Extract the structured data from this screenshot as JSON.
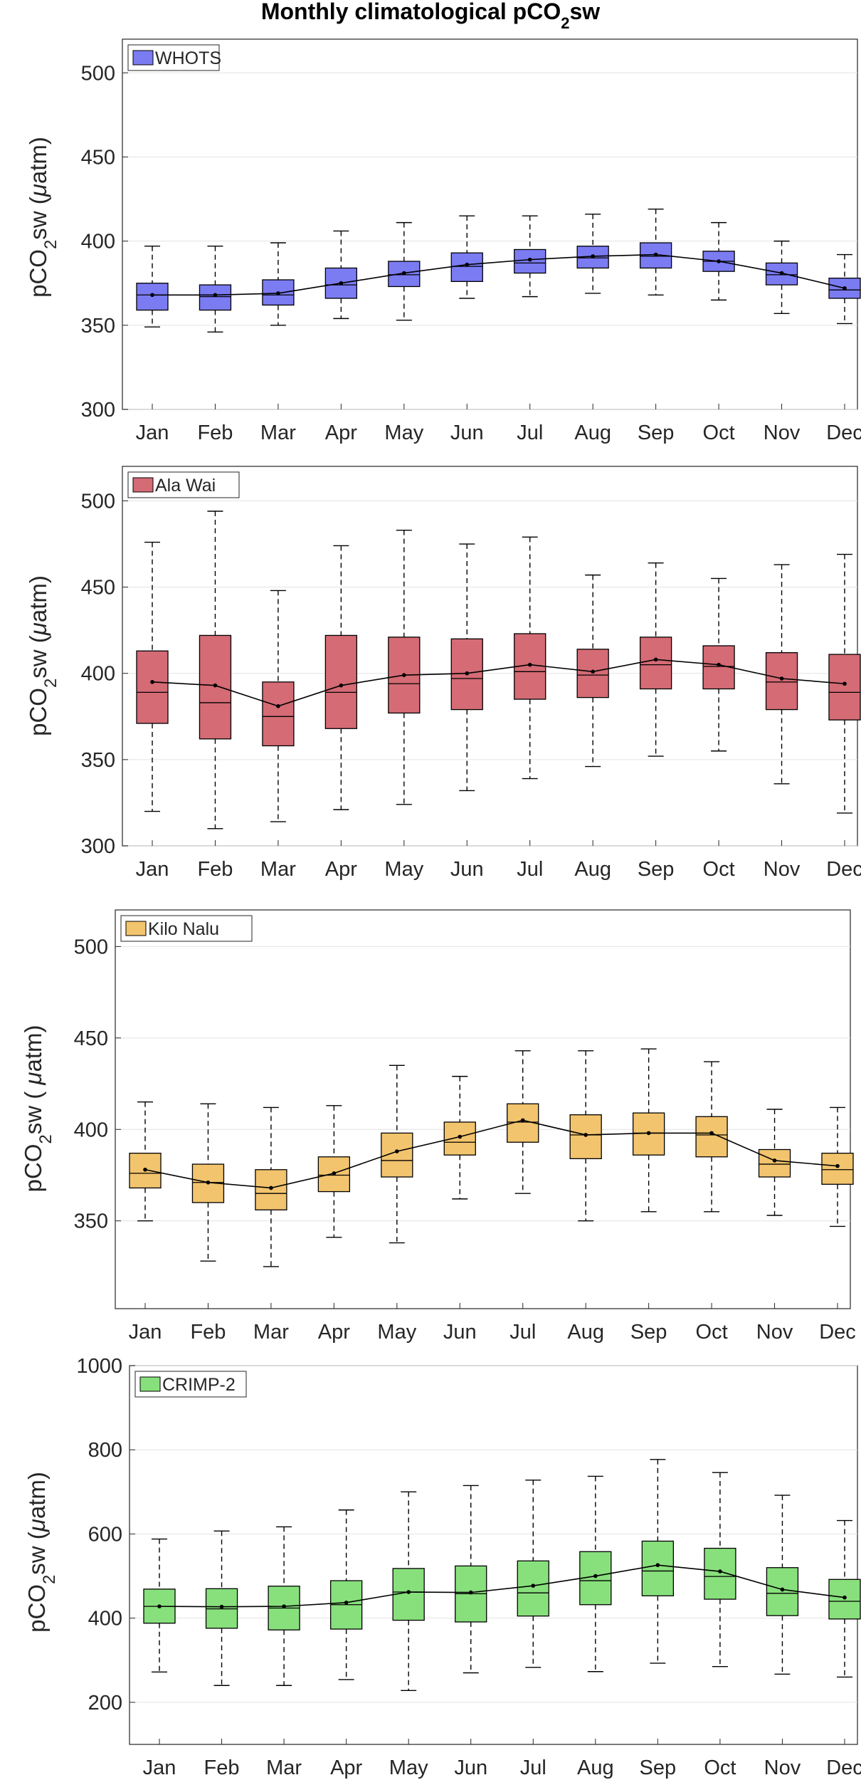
{
  "figure_title": {
    "prefix": "Monthly climatological pCO",
    "sub": "2",
    "suffix": "sw"
  },
  "chart_data": [
    {
      "type": "box",
      "legend": "WHOTS",
      "color": "#7b7bf2",
      "ylabel": {
        "a": "pCO",
        "sub": "2",
        "b": "sw (",
        "mu": "μ",
        "c": "atm)"
      },
      "ylim": [
        300,
        520
      ],
      "yticks": [
        300,
        350,
        400,
        450,
        500
      ],
      "ytick_labels": [
        "300",
        "350",
        "400",
        "450",
        "500"
      ],
      "categories": [
        "Jan",
        "Feb",
        "Mar",
        "Apr",
        "May",
        "Jun",
        "Jul",
        "Aug",
        "Sep",
        "Oct",
        "Nov",
        "Dec"
      ],
      "whisker_low": [
        349,
        346,
        350,
        354,
        353,
        366,
        367,
        369,
        368,
        365,
        357,
        351
      ],
      "q1": [
        359,
        359,
        362,
        366,
        373,
        376,
        381,
        384,
        384,
        382,
        374,
        366
      ],
      "median": [
        368,
        367,
        368,
        374,
        380,
        385,
        387,
        390,
        391,
        388,
        380,
        371
      ],
      "q3": [
        375,
        374,
        377,
        384,
        388,
        393,
        395,
        397,
        399,
        394,
        387,
        378
      ],
      "whisker_high": [
        397,
        397,
        399,
        406,
        411,
        415,
        415,
        416,
        419,
        411,
        400,
        392
      ],
      "mean": [
        368,
        368,
        369,
        375,
        381,
        386,
        389,
        391,
        392,
        388,
        381,
        372
      ]
    },
    {
      "type": "box",
      "legend": "Ala Wai",
      "color": "#d46b75",
      "ylabel": {
        "a": "pCO",
        "sub": "2",
        "b": "sw (",
        "mu": "μ",
        "c": "atm)"
      },
      "ylim": [
        300,
        520
      ],
      "yticks": [
        300,
        350,
        400,
        450,
        500
      ],
      "ytick_labels": [
        "300",
        "350",
        "400",
        "450",
        "500"
      ],
      "categories": [
        "Jan",
        "Feb",
        "Mar",
        "Apr",
        "May",
        "Jun",
        "Jul",
        "Aug",
        "Sep",
        "Oct",
        "Nov",
        "Dec"
      ],
      "whisker_low": [
        320,
        310,
        314,
        321,
        324,
        332,
        339,
        346,
        352,
        355,
        336,
        319
      ],
      "q1": [
        371,
        362,
        358,
        368,
        377,
        379,
        385,
        386,
        391,
        391,
        379,
        373
      ],
      "median": [
        389,
        383,
        375,
        389,
        394,
        397,
        401,
        399,
        405,
        404,
        395,
        389
      ],
      "q3": [
        413,
        422,
        395,
        422,
        421,
        420,
        423,
        414,
        421,
        416,
        412,
        411
      ],
      "whisker_high": [
        476,
        494,
        448,
        474,
        483,
        475,
        479,
        457,
        464,
        455,
        463,
        469
      ],
      "mean": [
        395,
        393,
        381,
        393,
        399,
        400,
        405,
        401,
        408,
        405,
        397,
        394
      ]
    },
    {
      "type": "box",
      "legend": "Kilo Nalu",
      "color": "#f2c46e",
      "ylabel": {
        "a": "pCO",
        "sub": "2",
        "b": "sw ( ",
        "mu": "μ",
        "c": "atm)"
      },
      "ylim": [
        302,
        520
      ],
      "yticks": [
        350,
        400,
        450,
        500
      ],
      "ytick_labels": [
        "350",
        "400",
        "450",
        "500"
      ],
      "categories": [
        "Jan",
        "Feb",
        "Mar",
        "Apr",
        "May",
        "Jun",
        "Jul",
        "Aug",
        "Sep",
        "Oct",
        "Nov",
        "Dec"
      ],
      "whisker_low": [
        350,
        328,
        325,
        341,
        338,
        362,
        365,
        350,
        355,
        355,
        353,
        347
      ],
      "q1": [
        368,
        360,
        356,
        366,
        374,
        386,
        393,
        384,
        386,
        385,
        374,
        370
      ],
      "median": [
        376,
        371,
        365,
        375,
        383,
        393,
        404,
        397,
        398,
        397,
        381,
        378
      ],
      "q3": [
        387,
        381,
        378,
        385,
        398,
        404,
        414,
        408,
        409,
        407,
        389,
        387
      ],
      "whisker_high": [
        415,
        414,
        412,
        413,
        435,
        429,
        443,
        443,
        444,
        437,
        411,
        412
      ],
      "mean": [
        378,
        371,
        368,
        376,
        388,
        396,
        405,
        397,
        398,
        398,
        383,
        380
      ]
    },
    {
      "type": "box",
      "legend": "CRIMP-2",
      "color": "#88e07c",
      "ylabel": {
        "a": "pCO",
        "sub": "2",
        "b": "sw (",
        "mu": "μ",
        "c": "atm)"
      },
      "ylim": [
        100,
        1000
      ],
      "yticks": [
        200,
        400,
        600,
        800,
        1000
      ],
      "ytick_labels": [
        "200",
        "400",
        "600",
        "800",
        "1000"
      ],
      "categories": [
        "Jan",
        "Feb",
        "Mar",
        "Apr",
        "May",
        "Jun",
        "Jul",
        "Aug",
        "Sep",
        "Oct",
        "Nov",
        "Dec"
      ],
      "whisker_low": [
        272,
        240,
        240,
        254,
        228,
        270,
        283,
        273,
        293,
        285,
        267,
        260
      ],
      "q1": [
        388,
        376,
        372,
        374,
        395,
        391,
        405,
        432,
        453,
        445,
        406,
        398
      ],
      "median": [
        428,
        422,
        424,
        432,
        462,
        458,
        460,
        489,
        512,
        499,
        459,
        440
      ],
      "q3": [
        469,
        470,
        476,
        489,
        518,
        524,
        536,
        558,
        583,
        566,
        520,
        492
      ],
      "whisker_high": [
        588,
        607,
        617,
        657,
        700,
        715,
        728,
        737,
        777,
        746,
        692,
        632
      ],
      "mean": [
        428,
        427,
        428,
        437,
        462,
        461,
        477,
        500,
        526,
        511,
        468,
        449
      ]
    }
  ]
}
